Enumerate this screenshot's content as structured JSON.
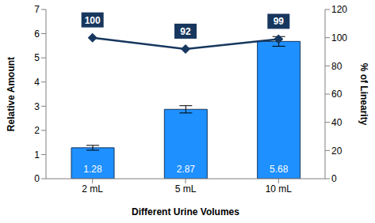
{
  "chart_data": {
    "type": "bar",
    "xlabel": "Different Urine Volumes",
    "ylabel": "Relative Amount",
    "y2label": "% of Linearity",
    "categories": [
      "2 mL",
      "5 mL",
      "10 mL"
    ],
    "ylim": [
      0,
      7
    ],
    "yticks": [
      0,
      1,
      2,
      3,
      4,
      5,
      6,
      7
    ],
    "y2lim": [
      0,
      120
    ],
    "y2ticks": [
      0,
      20,
      40,
      60,
      80,
      100,
      120
    ],
    "grid": false,
    "series": [
      {
        "type": "bar",
        "color": "#1e90ff",
        "values": [
          1.28,
          2.87,
          5.68
        ],
        "errors": [
          0.1,
          0.15,
          0.2
        ],
        "data_labels": true
      },
      {
        "type": "line",
        "axis": "y2",
        "color": "#17375e",
        "marker": "diamond",
        "values": [
          100,
          92,
          99
        ],
        "data_labels": true
      }
    ]
  }
}
